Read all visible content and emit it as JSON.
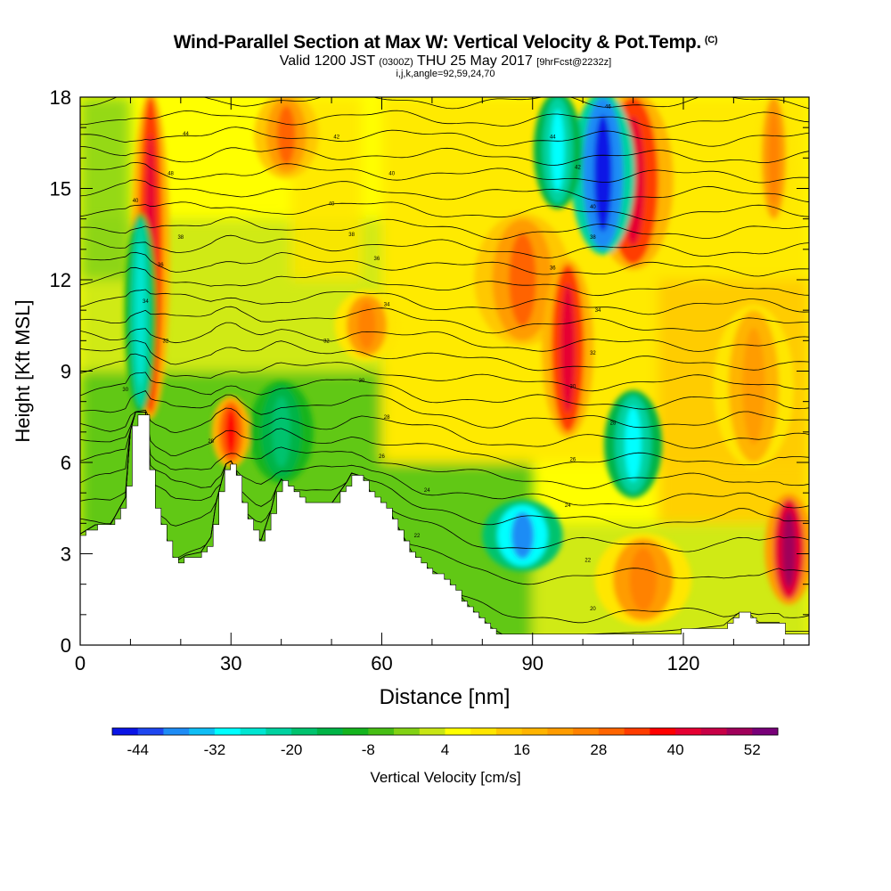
{
  "header": {
    "title": "Wind-Parallel Section at Max W: Vertical Velocity & Pot.Temp.",
    "title_mark": "(C)",
    "valid_prefix": "Valid 1200 JST",
    "valid_utc": "(0300Z)",
    "valid_date": "THU 25 May 2017",
    "fcst_info": "[9hrFcst@2232z]",
    "params": "i,j,k,angle=92,59,24,70"
  },
  "chart_data": {
    "type": "heatmap",
    "xlabel": "Distance [nm]",
    "ylabel": "Height [Kft MSL]",
    "xlim": [
      0,
      145
    ],
    "ylim": [
      0,
      18
    ],
    "x_ticks": [
      0,
      30,
      60,
      90,
      120
    ],
    "y_ticks": [
      0,
      3,
      6,
      9,
      12,
      15,
      18
    ],
    "colorbar": {
      "label": "Vertical Velocity [cm/s]",
      "ticks": [
        -44,
        -32,
        -20,
        -8,
        4,
        16,
        28,
        40,
        52
      ],
      "levels": [
        -48,
        -44,
        -40,
        -36,
        -32,
        -28,
        -24,
        -20,
        -16,
        -12,
        -8,
        -4,
        0,
        4,
        8,
        12,
        16,
        20,
        24,
        28,
        32,
        36,
        40,
        44,
        48,
        52,
        56
      ],
      "colors": [
        "#0a14e6",
        "#1e46f0",
        "#1e8cf5",
        "#0fbef5",
        "#00ffff",
        "#00e6d2",
        "#00d2a0",
        "#00c36e",
        "#00b446",
        "#14b41e",
        "#46be14",
        "#82d214",
        "#c8e614",
        "#ffff00",
        "#ffe600",
        "#ffc800",
        "#ffb400",
        "#ff9c00",
        "#ff8200",
        "#ff6400",
        "#ff3c00",
        "#ff0000",
        "#e60032",
        "#c80046",
        "#a0005a",
        "#780078"
      ]
    },
    "terrain_kft": [
      [
        0,
        3.6
      ],
      [
        3,
        3.9
      ],
      [
        6,
        3.9
      ],
      [
        7,
        4.2
      ],
      [
        9,
        4.8
      ],
      [
        10,
        7.0
      ],
      [
        11,
        7.6
      ],
      [
        13,
        7.6
      ],
      [
        14,
        5.2
      ],
      [
        15,
        4.4
      ],
      [
        17,
        3.6
      ],
      [
        18,
        2.9
      ],
      [
        19,
        2.7
      ],
      [
        21,
        2.9
      ],
      [
        24,
        3.0
      ],
      [
        26,
        3.5
      ],
      [
        27,
        4.6
      ],
      [
        29,
        5.9
      ],
      [
        30,
        6.0
      ],
      [
        31,
        5.7
      ],
      [
        32,
        4.8
      ],
      [
        33,
        4.3
      ],
      [
        35,
        3.5
      ],
      [
        36,
        3.4
      ],
      [
        38,
        4.4
      ],
      [
        39,
        5.1
      ],
      [
        40,
        5.4
      ],
      [
        42,
        5.1
      ],
      [
        45,
        4.6
      ],
      [
        50,
        4.6
      ],
      [
        53,
        5.3
      ],
      [
        54,
        5.6
      ],
      [
        56,
        5.5
      ],
      [
        58,
        4.9
      ],
      [
        60,
        4.6
      ],
      [
        62,
        4.2
      ],
      [
        64,
        3.6
      ],
      [
        66,
        3.0
      ],
      [
        68,
        2.6
      ],
      [
        70,
        2.4
      ],
      [
        72,
        2.2
      ],
      [
        74,
        1.9
      ],
      [
        76,
        1.5
      ],
      [
        78,
        1.1
      ],
      [
        80,
        0.8
      ],
      [
        82,
        0.5
      ],
      [
        84,
        0.3
      ],
      [
        90,
        0.3
      ],
      [
        100,
        0.3
      ],
      [
        115,
        0.4
      ],
      [
        123,
        0.5
      ],
      [
        128,
        0.6
      ],
      [
        131,
        1.0
      ],
      [
        133,
        1.0
      ],
      [
        135,
        0.7
      ],
      [
        139,
        0.7
      ],
      [
        140,
        0.4
      ],
      [
        145,
        0.4
      ]
    ],
    "contours": {
      "isotherm_heights_kft": [
        0.9,
        2.0,
        3.1,
        4.0,
        4.7,
        5.3,
        5.9,
        6.5,
        7.1,
        7.7,
        8.3,
        8.9,
        9.5,
        10.1,
        10.7,
        11.3,
        11.9,
        12.5,
        13.1,
        13.7,
        14.3,
        14.9,
        15.5,
        16.1,
        16.7,
        17.3,
        17.9
      ],
      "labels": [
        {
          "x": 21,
          "y": 16.8,
          "text": "44"
        },
        {
          "x": 51,
          "y": 16.7,
          "text": "42"
        },
        {
          "x": 94,
          "y": 16.7,
          "text": "44"
        },
        {
          "x": 105,
          "y": 17.7,
          "text": "46"
        },
        {
          "x": 18,
          "y": 15.5,
          "text": "48"
        },
        {
          "x": 62,
          "y": 15.5,
          "text": "40"
        },
        {
          "x": 99,
          "y": 15.7,
          "text": "42"
        },
        {
          "x": 11,
          "y": 14.6,
          "text": "40"
        },
        {
          "x": 50,
          "y": 14.5,
          "text": "40"
        },
        {
          "x": 102,
          "y": 14.4,
          "text": "40"
        },
        {
          "x": 20,
          "y": 13.4,
          "text": "38"
        },
        {
          "x": 54,
          "y": 13.5,
          "text": "38"
        },
        {
          "x": 102,
          "y": 13.4,
          "text": "38"
        },
        {
          "x": 16,
          "y": 12.5,
          "text": "36"
        },
        {
          "x": 59,
          "y": 12.7,
          "text": "36"
        },
        {
          "x": 94,
          "y": 12.4,
          "text": "36"
        },
        {
          "x": 13,
          "y": 11.3,
          "text": "34"
        },
        {
          "x": 61,
          "y": 11.2,
          "text": "34"
        },
        {
          "x": 103,
          "y": 11.0,
          "text": "34"
        },
        {
          "x": 17,
          "y": 10.0,
          "text": "32"
        },
        {
          "x": 49,
          "y": 10.0,
          "text": "32"
        },
        {
          "x": 102,
          "y": 9.6,
          "text": "32"
        },
        {
          "x": 9,
          "y": 8.4,
          "text": "30"
        },
        {
          "x": 56,
          "y": 8.7,
          "text": "30"
        },
        {
          "x": 98,
          "y": 8.5,
          "text": "30"
        },
        {
          "x": 26,
          "y": 6.7,
          "text": "28"
        },
        {
          "x": 61,
          "y": 7.5,
          "text": "28"
        },
        {
          "x": 106,
          "y": 7.3,
          "text": "28"
        },
        {
          "x": 60,
          "y": 6.2,
          "text": "26"
        },
        {
          "x": 98,
          "y": 6.1,
          "text": "26"
        },
        {
          "x": 69,
          "y": 5.1,
          "text": "24"
        },
        {
          "x": 97,
          "y": 4.6,
          "text": "24"
        },
        {
          "x": 67,
          "y": 3.6,
          "text": "22"
        },
        {
          "x": 101,
          "y": 2.8,
          "text": "22"
        },
        {
          "x": 102,
          "y": 1.2,
          "text": "20"
        }
      ]
    },
    "features": [
      {
        "kind": "updraft",
        "x": 14,
        "y_top": 18,
        "y_bottom": 7.6,
        "w": 1.2,
        "peak": 42
      },
      {
        "kind": "downdraft",
        "x": 12,
        "y_top": 14,
        "y_bottom": 7.8,
        "w": 1.0,
        "peak": -26
      },
      {
        "kind": "updraft",
        "x": 30,
        "y_top": 8.0,
        "y_bottom": 6.0,
        "w": 1.2,
        "peak": 38
      },
      {
        "kind": "downdraft",
        "x": 40,
        "y_top": 8.5,
        "y_bottom": 5.5,
        "w": 2.0,
        "peak": -20
      },
      {
        "kind": "updraft",
        "x": 41,
        "y_top": 18,
        "y_bottom": 15.5,
        "w": 2.0,
        "peak": 28
      },
      {
        "kind": "updraft",
        "x": 57,
        "y_top": 11.5,
        "y_bottom": 9.5,
        "w": 2.0,
        "peak": 26
      },
      {
        "kind": "updraft",
        "x": 88,
        "y_top": 14,
        "y_bottom": 10.0,
        "w": 3.0,
        "peak": 28
      },
      {
        "kind": "updraft",
        "x": 97,
        "y_top": 12.5,
        "y_bottom": 7.0,
        "w": 1.6,
        "peak": 40
      },
      {
        "kind": "updraft",
        "x": 110,
        "y_top": 18,
        "y_bottom": 12.5,
        "w": 2.5,
        "peak": 40
      },
      {
        "kind": "downdraft",
        "x": 104,
        "y_top": 18,
        "y_bottom": 13.0,
        "w": 2.0,
        "peak": -46
      },
      {
        "kind": "downdraft",
        "x": 95,
        "y_top": 18,
        "y_bottom": 14.5,
        "w": 1.5,
        "peak": -30
      },
      {
        "kind": "downdraft",
        "x": 88,
        "y_top": 4.6,
        "y_bottom": 2.6,
        "w": 2.5,
        "peak": -40
      },
      {
        "kind": "downdraft",
        "x": 110,
        "y_top": 8.2,
        "y_bottom": 5.0,
        "w": 1.8,
        "peak": -30
      },
      {
        "kind": "updraft",
        "x": 141,
        "y_top": 4.8,
        "y_bottom": 1.5,
        "w": 1.5,
        "peak": 50
      },
      {
        "kind": "updraft",
        "x": 134,
        "y_top": 11,
        "y_bottom": 6.0,
        "w": 2.5,
        "peak": 20
      },
      {
        "kind": "updraft",
        "x": 138,
        "y_top": 18,
        "y_bottom": 14.0,
        "w": 1.2,
        "peak": 26
      },
      {
        "kind": "updraft",
        "x": 112,
        "y_top": 3.5,
        "y_bottom": 0.8,
        "w": 3.0,
        "peak": 26
      }
    ]
  }
}
